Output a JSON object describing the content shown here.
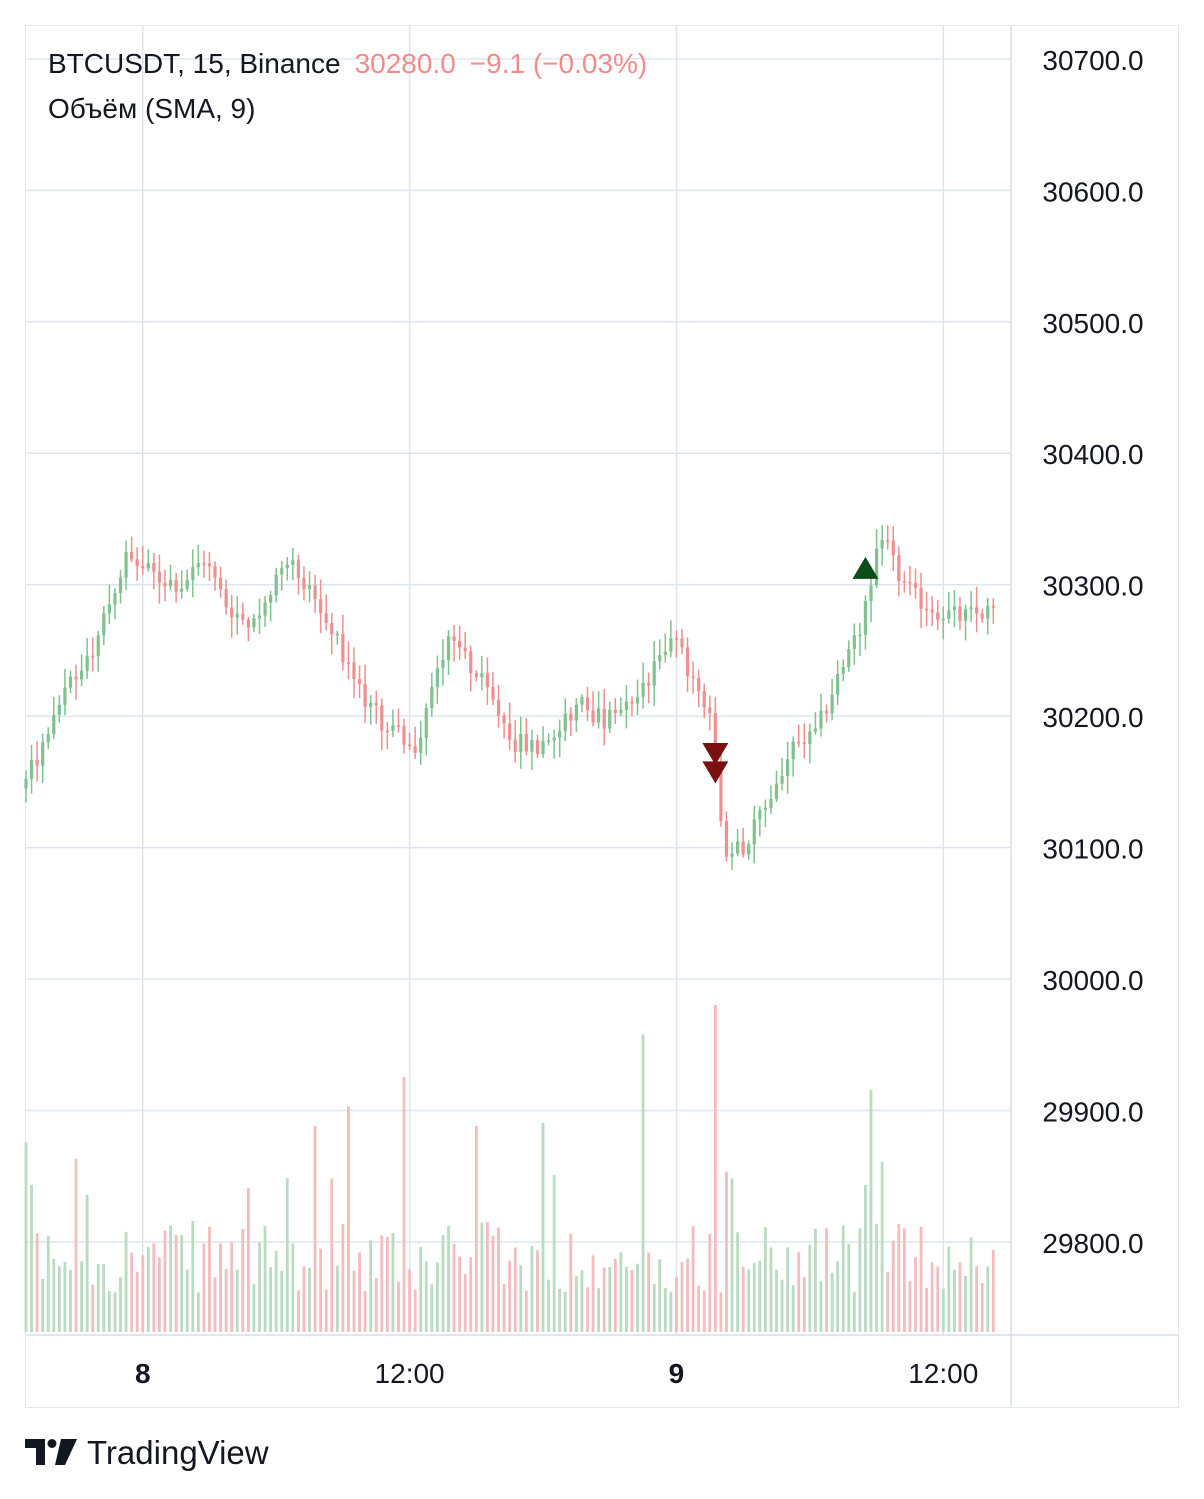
{
  "legend": {
    "symbol": "BTCUSDT, 15, Binance",
    "price": "30280.0",
    "change": "−9.1 (−0.03%)",
    "indicator": "Объём (SMA, 9)"
  },
  "brand": "TradingView",
  "colors": {
    "up": "#7fc28e",
    "down": "#ef8f8f",
    "volume_up": "#b9dcc0",
    "volume_down": "#f4bcbc",
    "grid": "#dde6f0",
    "text": "#131722",
    "signal_up": "#0b4d1c",
    "signal_down": "#7a1010"
  },
  "chart_data": {
    "type": "candlestick",
    "ylim": [
      29730,
      30725
    ],
    "y_ticks": [
      "30700.0",
      "30600.0",
      "30500.0",
      "30400.0",
      "30300.0",
      "30200.0",
      "30100.0",
      "30000.0",
      "29900.0",
      "29800.0"
    ],
    "y_tick_values": [
      30700,
      30600,
      30500,
      30400,
      30300,
      30200,
      30100,
      30000,
      29900,
      29800
    ],
    "x_ticks": [
      {
        "label": "8",
        "bold": true,
        "hour": 0
      },
      {
        "label": "12:00",
        "bold": false,
        "hour": 12
      },
      {
        "label": "9",
        "bold": true,
        "hour": 24
      },
      {
        "label": "12:00",
        "bold": false,
        "hour": 36
      }
    ],
    "x_range_hours": [
      -5.25,
      39.0
    ],
    "first_bar_hour": -5.25,
    "bar_interval_hours": 0.25,
    "volume_max": 100,
    "signals": [
      {
        "type": "sell",
        "bar": 124,
        "price": 30172
      },
      {
        "type": "sell",
        "bar": 124,
        "price": 30158
      },
      {
        "type": "buy",
        "bar": 151,
        "price": 30312
      }
    ],
    "anchors": [
      [
        0,
        30150
      ],
      [
        4,
        30185
      ],
      [
        8,
        30225
      ],
      [
        12,
        30245
      ],
      [
        14,
        30275
      ],
      [
        18,
        30320
      ],
      [
        24,
        30305
      ],
      [
        28,
        30300
      ],
      [
        32,
        30320
      ],
      [
        36,
        30285
      ],
      [
        40,
        30270
      ],
      [
        44,
        30295
      ],
      [
        48,
        30315
      ],
      [
        52,
        30290
      ],
      [
        56,
        30255
      ],
      [
        60,
        30220
      ],
      [
        64,
        30195
      ],
      [
        68,
        30185
      ],
      [
        70,
        30170
      ],
      [
        72,
        30205
      ],
      [
        76,
        30265
      ],
      [
        80,
        30240
      ],
      [
        84,
        30210
      ],
      [
        88,
        30180
      ],
      [
        92,
        30175
      ],
      [
        96,
        30195
      ],
      [
        100,
        30210
      ],
      [
        104,
        30195
      ],
      [
        108,
        30205
      ],
      [
        112,
        30225
      ],
      [
        116,
        30265
      ],
      [
        120,
        30225
      ],
      [
        123,
        30195
      ],
      [
        124,
        30160
      ],
      [
        126,
        30095
      ],
      [
        130,
        30105
      ],
      [
        134,
        30140
      ],
      [
        138,
        30175
      ],
      [
        142,
        30185
      ],
      [
        146,
        30230
      ],
      [
        150,
        30265
      ],
      [
        152,
        30300
      ],
      [
        154,
        30340
      ],
      [
        156,
        30315
      ],
      [
        158,
        30300
      ],
      [
        160,
        30290
      ],
      [
        164,
        30280
      ],
      [
        168,
        30275
      ],
      [
        174,
        30280
      ]
    ],
    "volume_spikes": [
      [
        0,
        58
      ],
      [
        1,
        45
      ],
      [
        9,
        53
      ],
      [
        11,
        42
      ],
      [
        40,
        44
      ],
      [
        47,
        47
      ],
      [
        52,
        63
      ],
      [
        55,
        47
      ],
      [
        58,
        69
      ],
      [
        68,
        78
      ],
      [
        81,
        63
      ],
      [
        93,
        64
      ],
      [
        95,
        48
      ],
      [
        111,
        91
      ],
      [
        124,
        100
      ],
      [
        126,
        49
      ],
      [
        127,
        47
      ],
      [
        151,
        45
      ],
      [
        152,
        74
      ],
      [
        154,
        52
      ]
    ]
  }
}
